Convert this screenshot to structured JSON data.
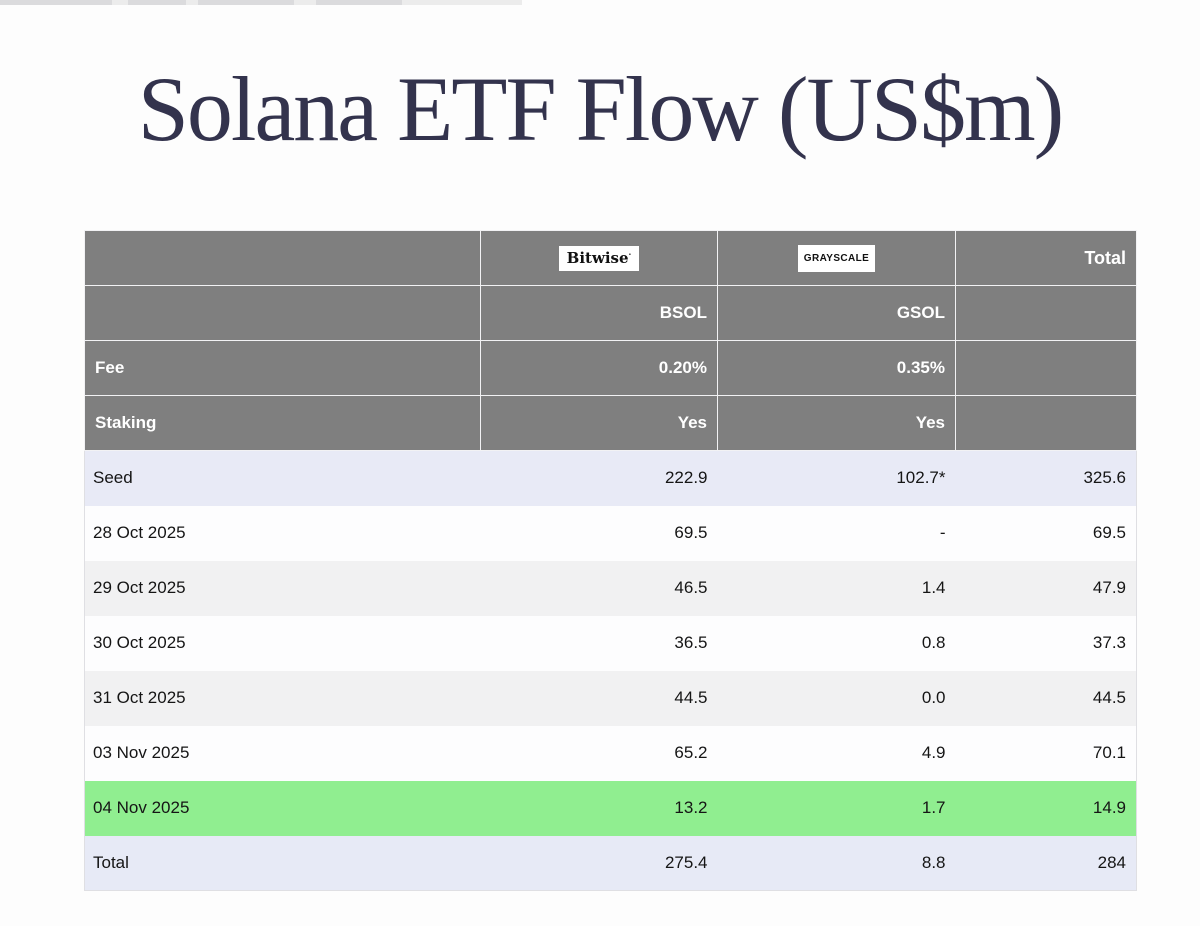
{
  "title": "Solana ETF Flow (US$m)",
  "table": {
    "header": {
      "bitwise_logo": "Bitwise",
      "bitwise_logo_mark": "·",
      "grayscale_logo": "GRAYSCALE",
      "total_label": "Total",
      "bsol_ticker": "BSOL",
      "gsol_ticker": "GSOL",
      "fee_label": "Fee",
      "fee_bsol": "0.20%",
      "fee_gsol": "0.35%",
      "staking_label": "Staking",
      "staking_bsol": "Yes",
      "staking_gsol": "Yes"
    },
    "rows": [
      {
        "label": "Seed",
        "bsol": "222.9",
        "gsol": "102.7*",
        "total": "325.6",
        "variant": "seed"
      },
      {
        "label": "28 Oct 2025",
        "bsol": "69.5",
        "gsol": "-",
        "total": "69.5",
        "variant": "white"
      },
      {
        "label": "29 Oct 2025",
        "bsol": "46.5",
        "gsol": "1.4",
        "total": "47.9",
        "variant": "gray"
      },
      {
        "label": "30 Oct 2025",
        "bsol": "36.5",
        "gsol": "0.8",
        "total": "37.3",
        "variant": "white"
      },
      {
        "label": "31 Oct 2025",
        "bsol": "44.5",
        "gsol": "0.0",
        "total": "44.5",
        "variant": "gray"
      },
      {
        "label": "03 Nov 2025",
        "bsol": "65.2",
        "gsol": "4.9",
        "total": "70.1",
        "variant": "white"
      },
      {
        "label": "04 Nov 2025",
        "bsol": "13.2",
        "gsol": "1.7",
        "total": "14.9",
        "variant": "green"
      },
      {
        "label": "Total",
        "bsol": "275.4",
        "gsol": "8.8",
        "total": "284",
        "variant": "total"
      }
    ],
    "colors": {
      "header_bg": "#7f7f7f",
      "header_border": "#f2f2f4",
      "row_white_bg": "#fdfdfe",
      "row_alt_bg": "#f1f1f2",
      "row_seed_bg": "#e8eaf6",
      "row_total_bg": "#e7eaf6",
      "row_highlight_bg": "#90ee90",
      "title_color": "#33334d",
      "text_color": "#151515"
    }
  },
  "chart_data": {
    "type": "table",
    "title": "Solana ETF Flow (US$m)",
    "columns": [
      "",
      "Bitwise BSOL",
      "Grayscale GSOL",
      "Total"
    ],
    "fee_row": [
      "Fee",
      "0.20%",
      "0.35%",
      ""
    ],
    "staking_row": [
      "Staking",
      "Yes",
      "Yes",
      ""
    ],
    "rows": [
      [
        "Seed",
        222.9,
        "102.7*",
        325.6
      ],
      [
        "28 Oct 2025",
        69.5,
        "-",
        69.5
      ],
      [
        "29 Oct 2025",
        46.5,
        1.4,
        47.9
      ],
      [
        "30 Oct 2025",
        36.5,
        0.8,
        37.3
      ],
      [
        "31 Oct 2025",
        44.5,
        0.0,
        44.5
      ],
      [
        "03 Nov 2025",
        65.2,
        4.9,
        70.1
      ],
      [
        "04 Nov 2025",
        13.2,
        1.7,
        14.9
      ],
      [
        "Total",
        275.4,
        8.8,
        284
      ]
    ],
    "highlighted_row": "04 Nov 2025",
    "layout": {
      "grid": "off",
      "legend": "none",
      "header_style": "gray-block"
    }
  }
}
